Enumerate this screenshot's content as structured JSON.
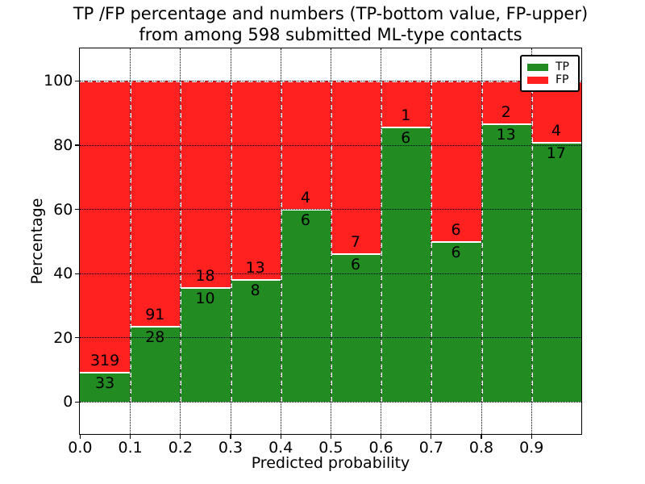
{
  "figure": {
    "title_line1": "TP /FP percentage and numbers (TP-bottom value, FP-upper)",
    "title_line2": "from among 598 submitted ML-type contacts"
  },
  "chart_data": {
    "type": "bar",
    "stacked": true,
    "title": "TP /FP percentage and numbers (TP-bottom value, FP-upper)\nfrom among 598 submitted ML-type contacts",
    "xlabel": "Predicted probability",
    "ylabel": "Percentage",
    "xlim": [
      0.0,
      1.0
    ],
    "ylim": [
      -10,
      110
    ],
    "xticks": [
      "0.0",
      "0.1",
      "0.2",
      "0.3",
      "0.4",
      "0.5",
      "0.6",
      "0.7",
      "0.8",
      "0.9"
    ],
    "yticks": [
      0,
      20,
      40,
      60,
      80,
      100
    ],
    "grid": true,
    "bin_edges": [
      0.0,
      0.1,
      0.2,
      0.3,
      0.4,
      0.5,
      0.6,
      0.7,
      0.8,
      0.9,
      1.0
    ],
    "categories": [
      "0.0-0.1",
      "0.1-0.2",
      "0.2-0.3",
      "0.3-0.4",
      "0.4-0.5",
      "0.5-0.6",
      "0.6-0.7",
      "0.7-0.8",
      "0.8-0.9",
      "0.9-1.0"
    ],
    "series": [
      {
        "name": "TP",
        "color": "#228B22",
        "counts": [
          33,
          28,
          10,
          8,
          6,
          6,
          6,
          6,
          13,
          17
        ],
        "percent_height": [
          9.4,
          23.5,
          35.7,
          38.1,
          60.0,
          46.2,
          85.7,
          50.0,
          86.7,
          81.0
        ]
      },
      {
        "name": "FP",
        "color": "#FF2020",
        "counts": [
          319,
          91,
          18,
          13,
          4,
          7,
          1,
          6,
          2,
          4
        ],
        "percent_height": [
          90.6,
          76.5,
          64.3,
          61.9,
          40.0,
          53.8,
          14.3,
          50.0,
          13.3,
          19.0
        ]
      }
    ],
    "total_contacts": 598,
    "legend": {
      "position": "upper right",
      "entries": [
        {
          "label": "TP",
          "color": "#228B22"
        },
        {
          "label": "FP",
          "color": "#FF2020"
        }
      ]
    },
    "colors": {
      "background": "#FFFFFF",
      "grid": "#000000",
      "text": "#000000",
      "bar_edge": "#FFFFFF"
    }
  }
}
